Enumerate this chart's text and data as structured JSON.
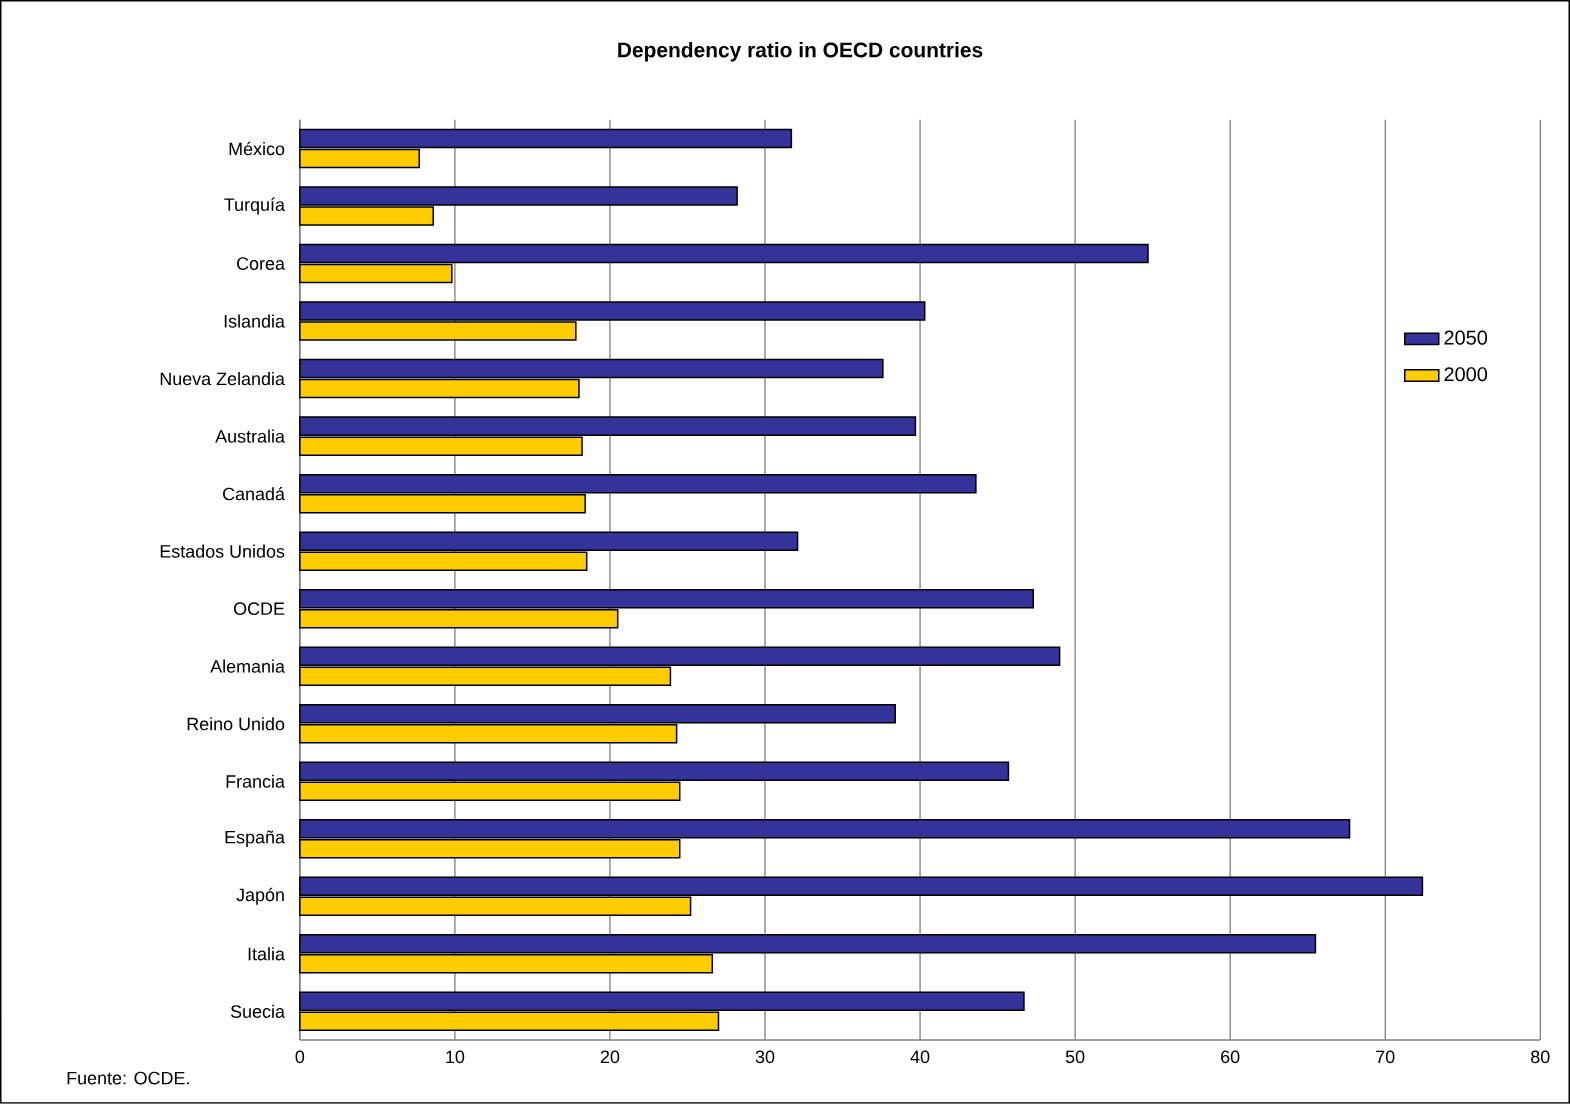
{
  "chart_data": {
    "type": "bar",
    "orientation": "horizontal",
    "title": "Dependency ratio in OECD countries",
    "categories": [
      "México",
      "Turquía",
      "Corea",
      "Islandia",
      "Nueva Zelandia",
      "Australia",
      "Canadá",
      "Estados Unidos",
      "OCDE",
      "Alemania",
      "Reino Unido",
      "Francia",
      "España",
      "Japón",
      "Italia",
      "Suecia"
    ],
    "series": [
      {
        "name": "2050",
        "color": "#333399",
        "values": [
          31.7,
          28.2,
          54.7,
          40.3,
          37.6,
          39.7,
          43.6,
          32.1,
          47.3,
          49.0,
          38.4,
          45.7,
          67.7,
          72.4,
          65.5,
          46.7
        ]
      },
      {
        "name": "2000",
        "color": "#ffcc00",
        "values": [
          7.7,
          8.6,
          9.8,
          17.8,
          18.0,
          18.2,
          18.4,
          18.5,
          20.5,
          23.9,
          24.3,
          24.5,
          24.5,
          25.2,
          26.6,
          27.0
        ]
      }
    ],
    "xlim": [
      0,
      80
    ],
    "xticks": [
      0,
      10,
      20,
      30,
      40,
      50,
      60,
      70,
      80
    ],
    "grid": "x",
    "legend": "top right",
    "annotations": [
      "Fuente: OCDE."
    ]
  }
}
